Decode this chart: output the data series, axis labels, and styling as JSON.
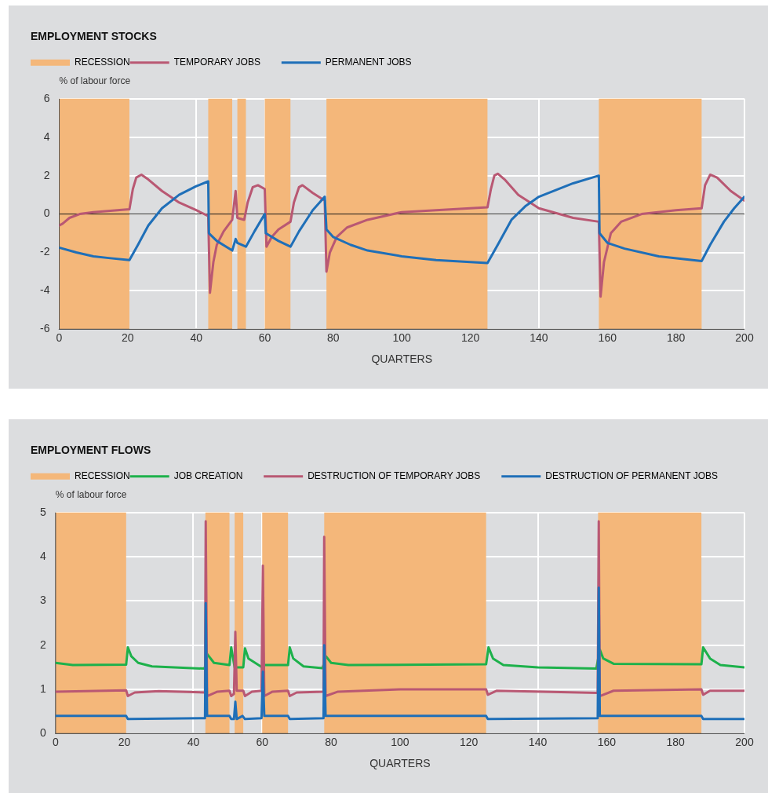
{
  "chart_data": [
    {
      "type": "line",
      "title": "EMPLOYMENT STOCKS",
      "xlabel": "QUARTERS",
      "ylabel": "% of labour force",
      "legend": "top left",
      "grid": true,
      "marker": "none",
      "line_style": "solid",
      "xlim": [
        0,
        200
      ],
      "xticks": [
        0,
        20,
        40,
        60,
        80,
        100,
        120,
        140,
        160,
        180,
        200
      ],
      "ylim": [
        -6,
        6
      ],
      "yticks": [
        -6,
        -4,
        -2,
        0,
        2,
        4,
        6
      ],
      "bands": [
        {
          "axis": "x",
          "from": 0,
          "to": 20.5,
          "label": "RECESSION",
          "color": "#f4b77a"
        },
        {
          "axis": "x",
          "from": 43.5,
          "to": 50.5,
          "color": "#f4b77a"
        },
        {
          "axis": "x",
          "from": 52,
          "to": 54.5,
          "color": "#f4b77a"
        },
        {
          "axis": "x",
          "from": 60,
          "to": 67.5,
          "color": "#f4b77a"
        },
        {
          "axis": "x",
          "from": 78,
          "to": 125,
          "color": "#f4b77a"
        },
        {
          "axis": "x",
          "from": 157.5,
          "to": 187.5,
          "color": "#f4b77a"
        }
      ],
      "ref_lines": [
        {
          "axis": "y",
          "value": 0,
          "color": "#1a1a1a"
        }
      ],
      "series": [
        {
          "name": "TEMPORARY JOBS",
          "color": "#b95873",
          "x": [
            0,
            1,
            3,
            6,
            10,
            20.5,
            21.5,
            22.5,
            24,
            26,
            30,
            35,
            40,
            43.5,
            44,
            45,
            46,
            48,
            50.5,
            51.5,
            52,
            54,
            55,
            56.5,
            58,
            60,
            60.5,
            62,
            64,
            67.5,
            68.5,
            70,
            71,
            74,
            77.5,
            78,
            79,
            81,
            84,
            90,
            100,
            110,
            125,
            126,
            127,
            128,
            130,
            134,
            140,
            150,
            157.5,
            158,
            159,
            161,
            164,
            170,
            180,
            187.5,
            188.5,
            190,
            192,
            196,
            200
          ],
          "values": [
            -0.6,
            -0.5,
            -0.2,
            0,
            0.1,
            0.25,
            1.3,
            1.9,
            2.05,
            1.8,
            1.2,
            0.6,
            0.2,
            -0.1,
            -4.1,
            -2.5,
            -1.6,
            -0.9,
            -0.3,
            1.2,
            -0.2,
            -0.3,
            0.6,
            1.4,
            1.5,
            1.3,
            -1.7,
            -1.2,
            -0.8,
            -0.4,
            0.6,
            1.4,
            1.5,
            1.1,
            0.7,
            -3,
            -2,
            -1.2,
            -0.7,
            -0.3,
            0.1,
            0.2,
            0.35,
            1.3,
            2,
            2.1,
            1.8,
            1,
            0.3,
            -0.2,
            -0.4,
            -4.3,
            -2.5,
            -1,
            -0.4,
            0,
            0.2,
            0.3,
            1.5,
            2.05,
            1.9,
            1.2,
            0.7
          ]
        },
        {
          "name": "PERMANENT JOBS",
          "color": "#1f6fb8",
          "x": [
            0,
            5,
            10,
            15,
            20.5,
            23,
            26,
            30,
            35,
            40,
            43.5,
            43.7,
            46,
            50.5,
            51.5,
            52,
            54.5,
            57,
            60,
            60.3,
            64,
            67.5,
            70,
            74,
            77.5,
            78,
            80,
            85,
            90,
            100,
            110,
            125,
            128,
            132,
            136,
            140,
            150,
            157.5,
            157.7,
            160,
            165,
            175,
            187.5,
            190,
            194,
            197,
            200
          ],
          "values": [
            -1.75,
            -2,
            -2.2,
            -2.3,
            -2.4,
            -1.6,
            -0.6,
            0.3,
            1,
            1.45,
            1.7,
            -1,
            -1.4,
            -1.9,
            -1.3,
            -1.5,
            -1.7,
            -0.9,
            0,
            -1,
            -1.4,
            -1.7,
            -0.9,
            0.2,
            0.9,
            -0.8,
            -1.2,
            -1.6,
            -1.9,
            -2.2,
            -2.4,
            -2.55,
            -1.6,
            -0.3,
            0.4,
            0.9,
            1.6,
            2,
            -1,
            -1.5,
            -1.8,
            -2.2,
            -2.45,
            -1.6,
            -0.4,
            0.3,
            0.9
          ]
        }
      ]
    },
    {
      "type": "line",
      "title": "EMPLOYMENT FLOWS",
      "xlabel": "QUARTERS",
      "ylabel": "% of labour force",
      "legend": "top left",
      "grid": true,
      "marker": "none",
      "line_style": "solid",
      "xlim": [
        0,
        200
      ],
      "xticks": [
        0,
        20,
        40,
        60,
        80,
        100,
        120,
        140,
        160,
        180,
        200
      ],
      "ylim": [
        0,
        5
      ],
      "yticks": [
        0,
        1,
        2,
        3,
        4,
        5
      ],
      "bands": [
        {
          "axis": "x",
          "from": 0,
          "to": 20.5,
          "label": "RECESSION",
          "color": "#f4b77a"
        },
        {
          "axis": "x",
          "from": 43.5,
          "to": 50.5,
          "color": "#f4b77a"
        },
        {
          "axis": "x",
          "from": 52,
          "to": 54.5,
          "color": "#f4b77a"
        },
        {
          "axis": "x",
          "from": 60,
          "to": 67.5,
          "color": "#f4b77a"
        },
        {
          "axis": "x",
          "from": 78,
          "to": 125,
          "color": "#f4b77a"
        },
        {
          "axis": "x",
          "from": 157.5,
          "to": 187.5,
          "color": "#f4b77a"
        }
      ],
      "series": [
        {
          "name": "JOB CREATION",
          "color": "#1db14b",
          "x": [
            0,
            5,
            20.5,
            21,
            22,
            24,
            28,
            43.3,
            44,
            46,
            50.5,
            51,
            52,
            54.5,
            55,
            56,
            60,
            60.5,
            67.5,
            68,
            69,
            72,
            77.5,
            78.5,
            80,
            85,
            125,
            125.7,
            127,
            130,
            140,
            157,
            158,
            159,
            162,
            187.5,
            188,
            190,
            193,
            200
          ],
          "values": [
            1.6,
            1.55,
            1.56,
            1.95,
            1.75,
            1.6,
            1.52,
            1.47,
            1.8,
            1.6,
            1.55,
            1.95,
            1.5,
            1.5,
            1.93,
            1.7,
            1.5,
            1.55,
            1.55,
            1.95,
            1.7,
            1.52,
            1.48,
            1.75,
            1.6,
            1.55,
            1.57,
            1.95,
            1.7,
            1.55,
            1.5,
            1.47,
            1.9,
            1.7,
            1.58,
            1.57,
            1.95,
            1.7,
            1.55,
            1.5
          ]
        },
        {
          "name": "DESTRUCTION OF TEMPORARY JOBS",
          "color": "#b95873",
          "x": [
            0,
            20.5,
            21,
            23,
            30,
            43.4,
            43.6,
            44,
            47,
            50.5,
            51,
            51.8,
            52.2,
            52.6,
            54.5,
            55,
            57,
            59.8,
            60.2,
            60.6,
            63,
            67.5,
            68,
            70,
            77.8,
            78,
            78.4,
            82,
            100,
            125,
            125.5,
            128,
            157.4,
            157.7,
            158,
            162,
            187.5,
            188,
            190,
            200
          ],
          "values": [
            0.95,
            0.98,
            0.85,
            0.93,
            0.96,
            0.93,
            4.8,
            0.85,
            0.95,
            0.97,
            0.85,
            0.9,
            2.3,
            0.97,
            0.97,
            0.85,
            0.95,
            0.97,
            3.8,
            0.85,
            0.95,
            0.97,
            0.85,
            0.93,
            0.95,
            4.45,
            0.85,
            0.95,
            1,
            1,
            0.88,
            0.97,
            0.92,
            4.8,
            0.85,
            0.97,
            1,
            0.88,
            0.97,
            0.97
          ]
        },
        {
          "name": "DESTRUCTION OF PERMANENT JOBS",
          "color": "#1f6fb8",
          "x": [
            0,
            20.5,
            21,
            43.4,
            43.6,
            44,
            50.5,
            51,
            51.8,
            52.2,
            52.6,
            54.3,
            55,
            59.8,
            60.2,
            60.6,
            67.5,
            68,
            77.8,
            78,
            78.4,
            125,
            125.5,
            157.4,
            157.7,
            158,
            187.5,
            188,
            200
          ],
          "values": [
            0.4,
            0.4,
            0.33,
            0.35,
            2.95,
            0.4,
            0.4,
            0.33,
            0.33,
            0.72,
            0.33,
            0.4,
            0.33,
            0.35,
            1.4,
            0.4,
            0.4,
            0.33,
            0.35,
            2,
            0.4,
            0.4,
            0.33,
            0.35,
            3.3,
            0.4,
            0.4,
            0.33,
            0.33
          ]
        }
      ]
    }
  ]
}
